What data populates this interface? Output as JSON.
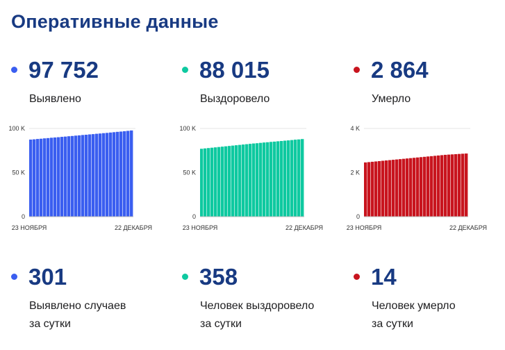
{
  "header": {
    "title": "Оперативные данные"
  },
  "colors": {
    "detected": "#3a5ef0",
    "recovered": "#0ec9a0",
    "died": "#c8141e"
  },
  "totals": [
    {
      "key": "detected",
      "value": "97 752",
      "label": "Выявлено"
    },
    {
      "key": "recovered",
      "value": "88 015",
      "label": "Выздоровело"
    },
    {
      "key": "died",
      "value": "2 864",
      "label": "Умерло"
    }
  ],
  "daily": [
    {
      "key": "detected",
      "value": "301",
      "label_line1": "Выявлено случаев",
      "label_line2": "за сутки"
    },
    {
      "key": "recovered",
      "value": "358",
      "label_line1": "Человек выздоровело",
      "label_line2": "за сутки"
    },
    {
      "key": "died",
      "value": "14",
      "label_line1": "Человек умерло",
      "label_line2": "за сутки"
    }
  ],
  "chart_data": [
    {
      "type": "bar",
      "x_start_label": "23 НОЯБРЯ",
      "x_end_label": "22 ДЕКАБРЯ",
      "yticks": [
        0,
        50000,
        100000
      ],
      "ytick_labels": [
        "0",
        "50 K",
        "100 K"
      ],
      "ylim": [
        0,
        100000
      ],
      "grid": false,
      "series": [
        {
          "values": [
            87400,
            87700,
            88100,
            88400,
            88800,
            89100,
            89500,
            89800,
            90100,
            90500,
            90800,
            91200,
            91500,
            91900,
            92200,
            92600,
            92900,
            93300,
            93600,
            94000,
            94300,
            94700,
            95000,
            95400,
            95800,
            96200,
            96500,
            96900,
            97300,
            97752
          ]
        }
      ]
    },
    {
      "type": "bar",
      "x_start_label": "23 НОЯБРЯ",
      "x_end_label": "22 ДЕКАБРЯ",
      "yticks": [
        0,
        50000,
        100000
      ],
      "ytick_labels": [
        "0",
        "50 K",
        "100 K"
      ],
      "ylim": [
        0,
        100000
      ],
      "grid": false,
      "series": [
        {
          "values": [
            77000,
            77400,
            77800,
            78200,
            78600,
            79000,
            79400,
            79800,
            80200,
            80600,
            81000,
            81400,
            81800,
            82200,
            82600,
            83000,
            83300,
            83700,
            84100,
            84400,
            84800,
            85100,
            85500,
            85800,
            86200,
            86500,
            86900,
            87300,
            87600,
            88015
          ]
        }
      ]
    },
    {
      "type": "bar",
      "x_start_label": "23 НОЯБРЯ",
      "x_end_label": "22 ДЕКАБРЯ",
      "yticks": [
        0,
        2000,
        4000
      ],
      "ytick_labels": [
        "0",
        "2 K",
        "4 K"
      ],
      "ylim": [
        0,
        4000
      ],
      "grid": false,
      "series": [
        {
          "values": [
            2460,
            2475,
            2490,
            2505,
            2520,
            2535,
            2550,
            2565,
            2580,
            2595,
            2610,
            2625,
            2640,
            2655,
            2670,
            2685,
            2700,
            2715,
            2730,
            2745,
            2760,
            2775,
            2790,
            2805,
            2815,
            2825,
            2835,
            2845,
            2855,
            2864
          ]
        }
      ]
    }
  ]
}
